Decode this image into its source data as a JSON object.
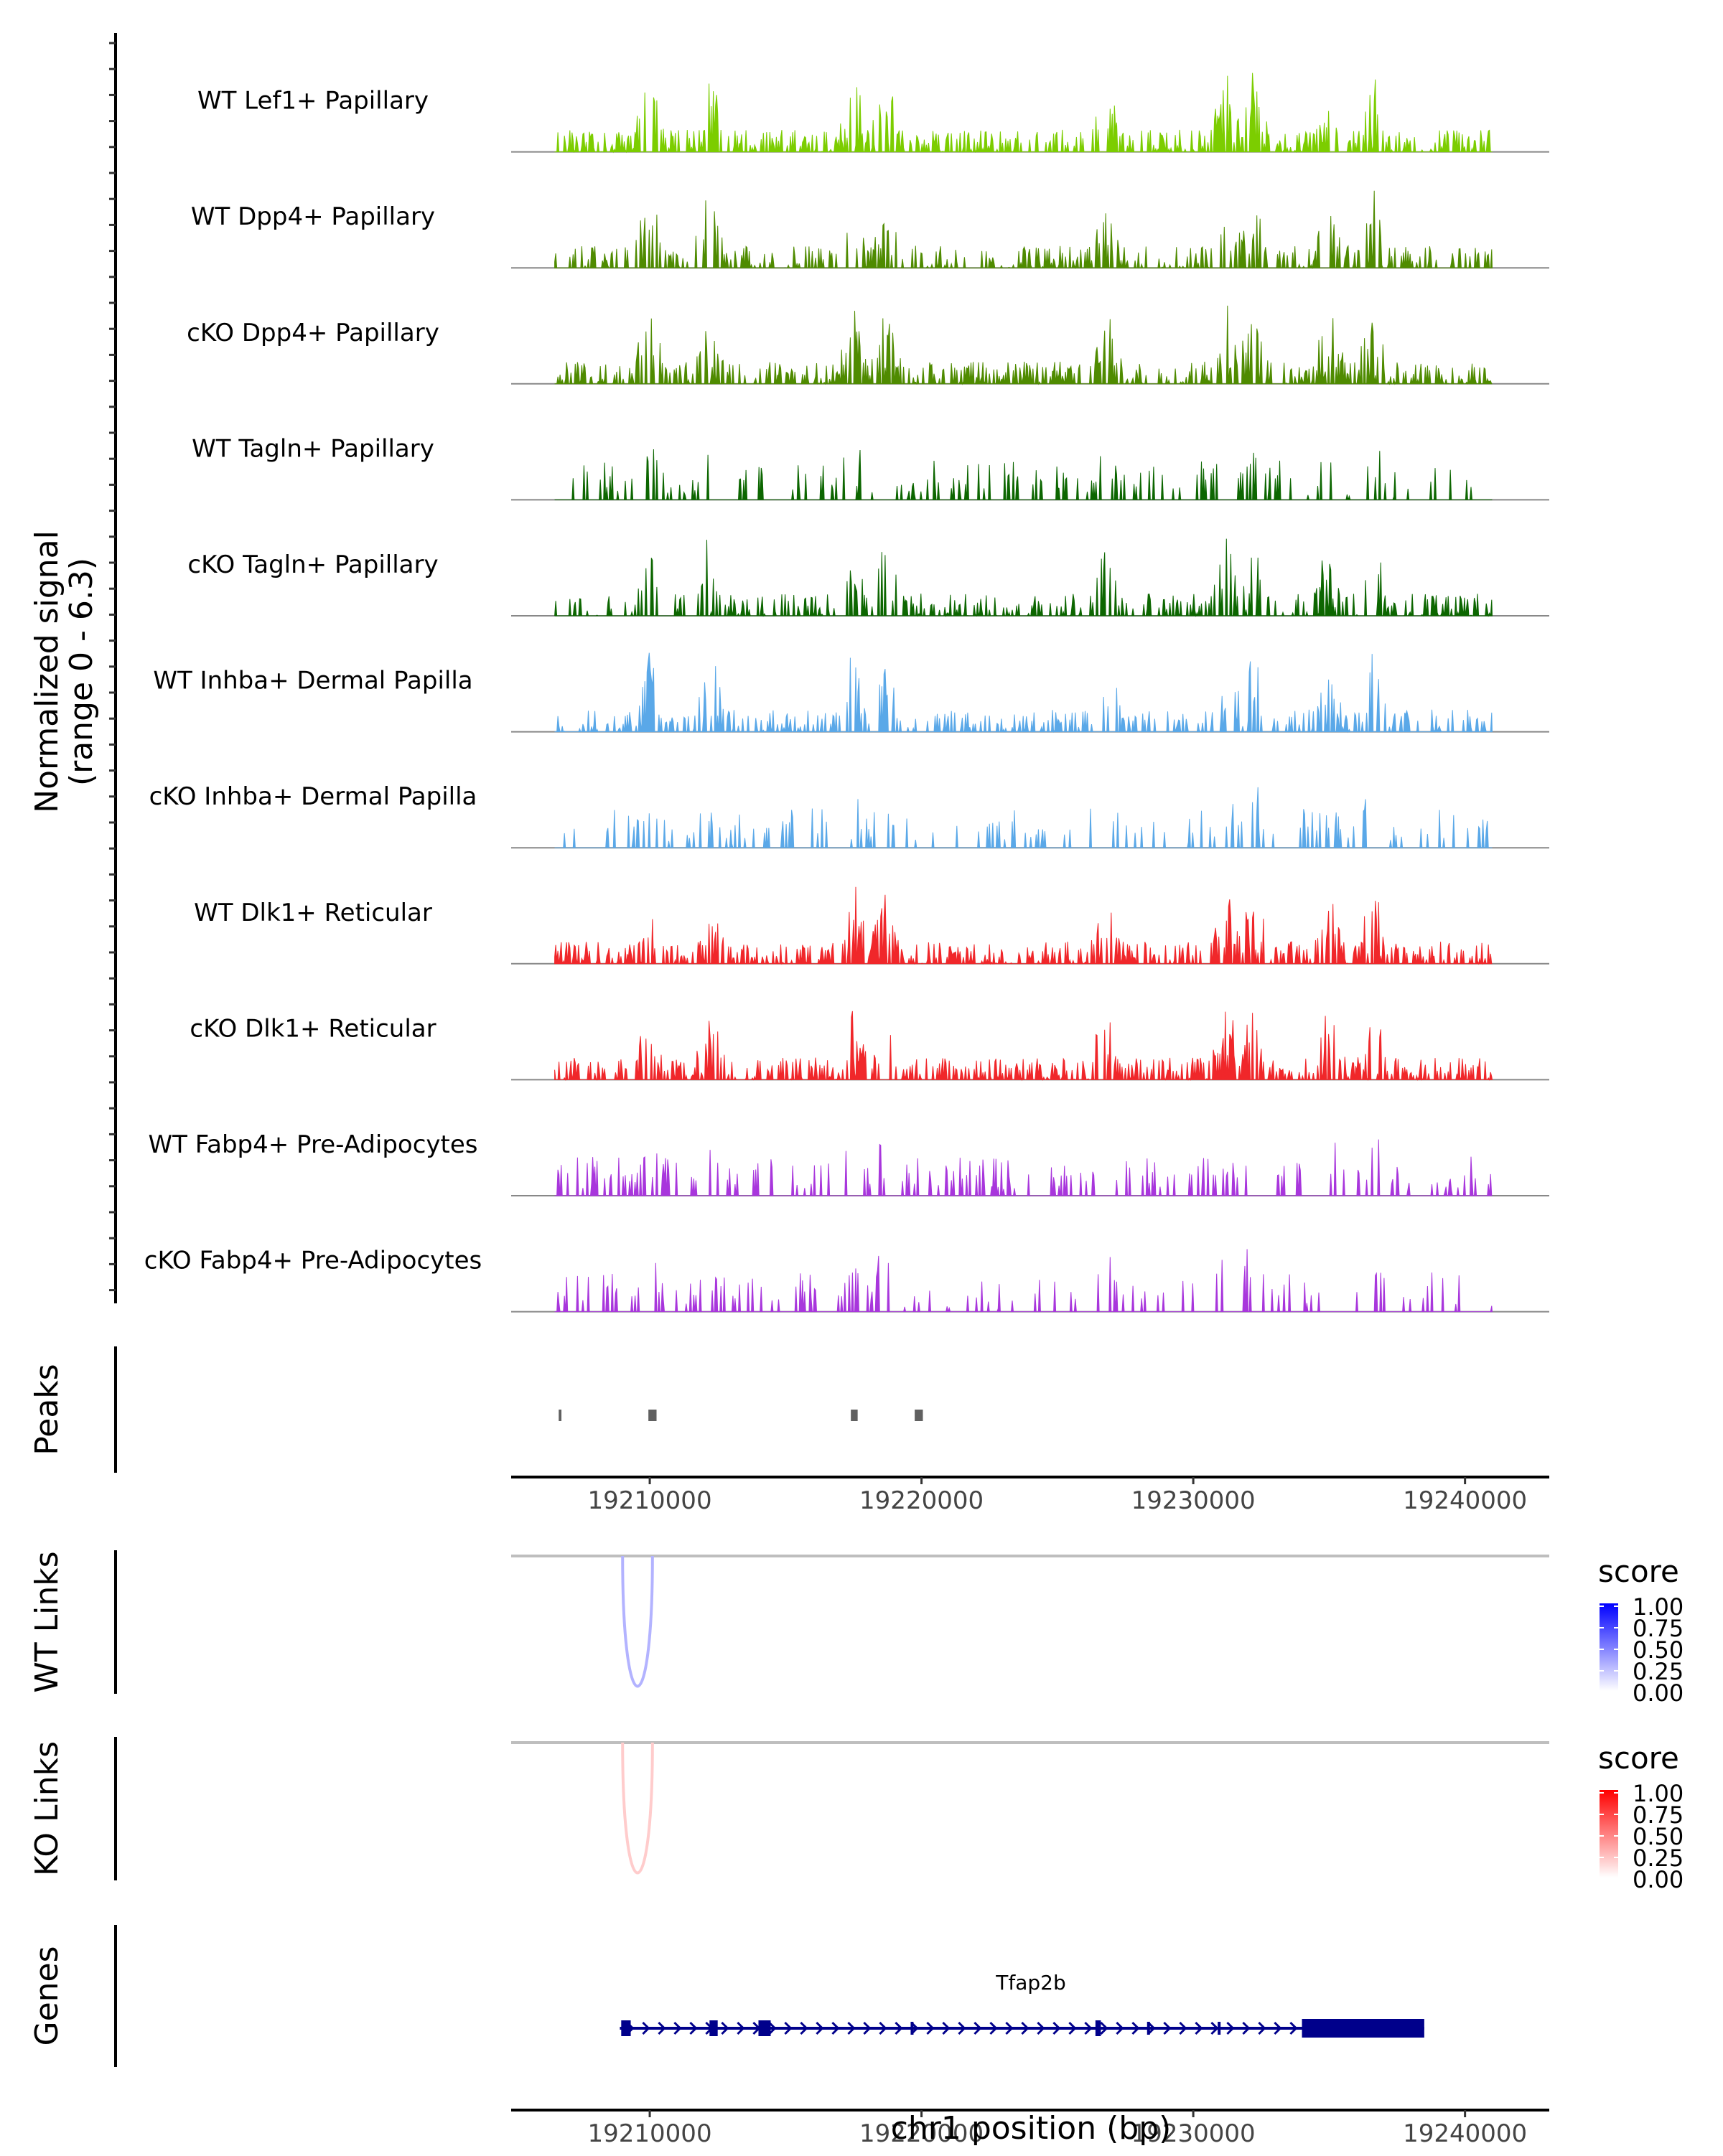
{
  "chart_data": {
    "type": "area",
    "title": "",
    "coverage": {
      "ylabel_line1": "Normalized signal",
      "ylabel_line2": "(range 0 - 6.3)",
      "ylim": [
        0,
        6.3
      ],
      "tracks": [
        {
          "label": "WT Lef1+ Papillary",
          "color": "#7CCD00"
        },
        {
          "label": "WT Dpp4+ Papillary",
          "color": "#4F8B00"
        },
        {
          "label": "cKO Dpp4+ Papillary",
          "color": "#4F8B00"
        },
        {
          "label": "WT Tagln+ Papillary",
          "color": "#0C6600"
        },
        {
          "label": "cKO Tagln+ Papillary",
          "color": "#0C6600"
        },
        {
          "label": "WT Inhba+ Dermal Papilla",
          "color": "#5AA8E8"
        },
        {
          "label": "cKO Inhba+ Dermal Papilla",
          "color": "#5AA8E8"
        },
        {
          "label": "WT Dlk1+ Reticular",
          "color": "#F0272A"
        },
        {
          "label": "cKO Dlk1+ Reticular",
          "color": "#F0272A"
        },
        {
          "label": "WT Fabp4+ Pre-Adipocytes",
          "color": "#A836DC"
        },
        {
          "label": "cKO Fabp4+ Pre-Adipocytes",
          "color": "#A836DC"
        }
      ]
    },
    "x_axis": {
      "label": "chr1 position (bp)",
      "range": [
        19204900,
        19243100
      ],
      "ticks": [
        19210000,
        19220000,
        19230000,
        19240000
      ],
      "tick_labels": [
        "19210000",
        "19220000",
        "19230000",
        "19240000"
      ]
    },
    "peaks": {
      "label": "Peaks",
      "color": "#606060",
      "intervals": [
        [
          19206650,
          19206750
        ],
        [
          19209950,
          19210250
        ],
        [
          19217400,
          19217650
        ],
        [
          19219750,
          19220050
        ]
      ]
    },
    "wt_links": {
      "label": "WT Links",
      "legend_title": "score",
      "legend_ticks": [
        "1.00",
        "0.75",
        "0.50",
        "0.25",
        "0.00"
      ],
      "gradient": [
        "#FFFFFF",
        "#0000FF"
      ],
      "links": [
        {
          "start": 19209000,
          "end": 19210100,
          "score": 0.3
        }
      ]
    },
    "ko_links": {
      "label": "KO Links",
      "legend_title": "score",
      "legend_ticks": [
        "1.00",
        "0.75",
        "0.50",
        "0.25",
        "0.00"
      ],
      "gradient": [
        "#FFFFFF",
        "#FF0000"
      ],
      "links": [
        {
          "start": 19209000,
          "end": 19210100,
          "score": 0.2
        }
      ]
    },
    "genes": {
      "label": "Genes",
      "color": "#00008B",
      "gene_name": "Tfap2b",
      "span": [
        19208900,
        19238500
      ],
      "exons": [
        [
          19208950,
          19209300
        ],
        [
          19212200,
          19212500
        ],
        [
          19214000,
          19214450
        ],
        [
          19226400,
          19226600
        ],
        [
          19234000,
          19238500
        ]
      ]
    }
  }
}
